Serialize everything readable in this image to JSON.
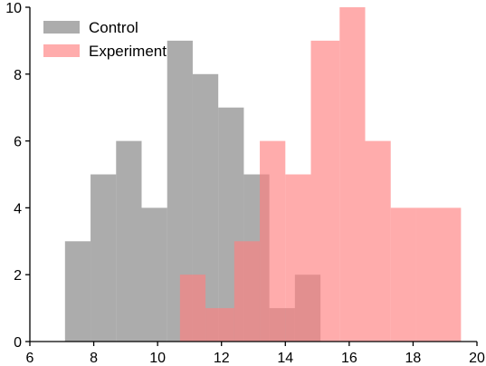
{
  "chart_data": {
    "type": "histogram",
    "title": "",
    "xlabel": "",
    "ylabel": "",
    "xlim": [
      6,
      20
    ],
    "ylim": [
      0,
      10
    ],
    "xticks": [
      6,
      8,
      10,
      12,
      14,
      16,
      18,
      20
    ],
    "yticks": [
      0,
      2,
      4,
      6,
      8,
      10
    ],
    "grid": false,
    "legend_position": "top-left",
    "series": [
      {
        "name": "Control",
        "color": "#808080",
        "opacity": 0.65,
        "bin_edges": [
          7.1,
          7.9,
          8.7,
          9.5,
          10.3,
          11.1,
          11.9,
          12.7,
          13.5,
          14.3,
          15.1
        ],
        "counts": [
          3,
          5,
          6,
          4,
          9,
          8,
          7,
          5,
          1,
          2
        ]
      },
      {
        "name": "Experiment",
        "color": "#ff7f7f",
        "opacity": 0.65,
        "bin_edges": [
          10.7,
          11.5,
          12.4,
          13.2,
          14.0,
          14.8,
          15.7,
          16.5,
          17.3,
          18.1,
          19.5
        ],
        "counts": [
          2,
          1,
          3,
          6,
          5,
          9,
          10,
          6,
          4,
          4
        ]
      }
    ],
    "tick_labels_x": [
      "6",
      "8",
      "10",
      "12",
      "14",
      "16",
      "18",
      "20"
    ],
    "tick_labels_y": [
      "0",
      "2",
      "4",
      "6",
      "8",
      "10"
    ]
  }
}
